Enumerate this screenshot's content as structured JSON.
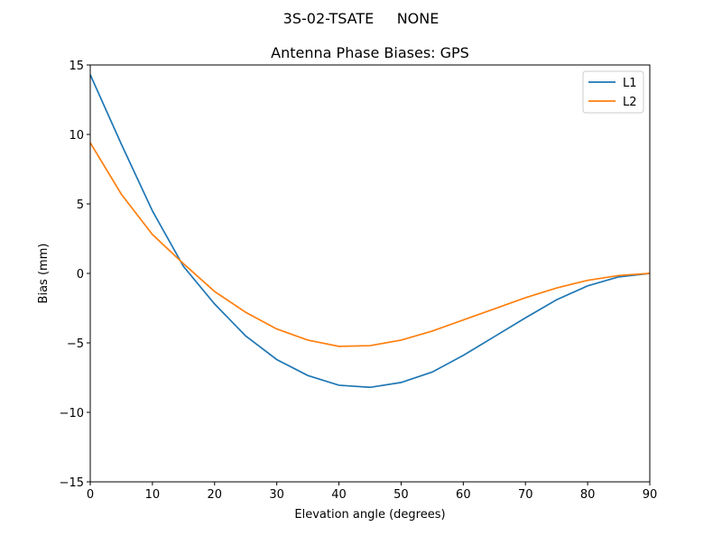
{
  "chart_data": {
    "type": "line",
    "suptitle": "3S-02-TSATE     NONE",
    "title": "Antenna Phase Biases: GPS",
    "xlabel": "Elevation angle (degrees)",
    "ylabel": "Bias (mm)",
    "xlim": [
      0,
      90
    ],
    "ylim": [
      -15,
      15
    ],
    "xticks": [
      0,
      10,
      20,
      30,
      40,
      50,
      60,
      70,
      80,
      90
    ],
    "yticks": [
      -15,
      -10,
      -5,
      0,
      5,
      10,
      15
    ],
    "ytick_labels": [
      "−15",
      "−10",
      "−5",
      "0",
      "5",
      "10",
      "15"
    ],
    "grid": false,
    "legend_position": "top-right",
    "x": [
      0,
      5,
      10,
      15,
      20,
      25,
      30,
      35,
      40,
      45,
      50,
      55,
      60,
      65,
      70,
      75,
      80,
      85,
      90
    ],
    "series": [
      {
        "name": "L1",
        "color": "#1f77b4",
        "values": [
          14.3,
          9.3,
          4.5,
          0.5,
          -2.2,
          -4.5,
          -6.2,
          -7.35,
          -8.05,
          -8.2,
          -7.85,
          -7.1,
          -5.9,
          -4.55,
          -3.2,
          -1.9,
          -0.9,
          -0.25,
          0
        ]
      },
      {
        "name": "L2",
        "color": "#ff7f0e",
        "values": [
          9.4,
          5.7,
          2.8,
          0.7,
          -1.3,
          -2.8,
          -4.0,
          -4.8,
          -5.25,
          -5.2,
          -4.8,
          -4.15,
          -3.35,
          -2.55,
          -1.75,
          -1.05,
          -0.5,
          -0.15,
          0
        ]
      }
    ]
  }
}
